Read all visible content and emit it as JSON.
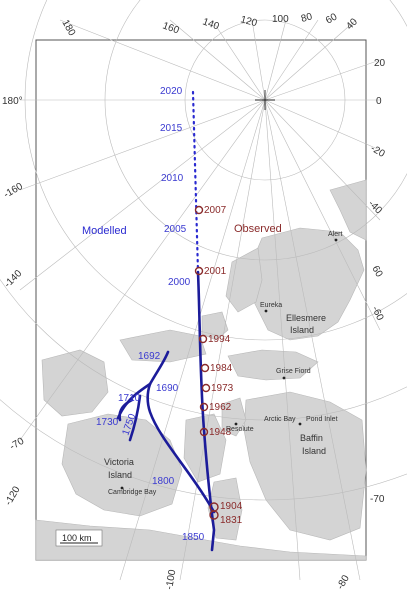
{
  "edge_labels": {
    "top": [
      "180",
      "160",
      "140",
      "120",
      "100",
      "80",
      "60",
      "40"
    ],
    "left": [
      "180°",
      "-160",
      "-140",
      "-70",
      "-120"
    ],
    "right": [
      "20",
      "0",
      "-20",
      "-40",
      "60",
      "-60",
      "-70",
      "-80"
    ],
    "bottom": [
      "-100",
      "-80"
    ]
  },
  "legend": {
    "modelled": "Modelled",
    "observed": "Observed"
  },
  "modelled_years": [
    "2020",
    "2015",
    "2010",
    "2005",
    "2000",
    "1692",
    "1710",
    "1690",
    "1730",
    "1750",
    "1800",
    "1850"
  ],
  "observed_years": [
    "2007",
    "2001",
    "1994",
    "1984",
    "1973",
    "1962",
    "1948",
    "1904",
    "1831"
  ],
  "places": [
    "Alert",
    "Eureka",
    "Grise Fiord",
    "Resolute",
    "Arctic Bay",
    "Pond Inlet",
    "Cambridge Bay"
  ],
  "islands": {
    "ellesmere_1": "Ellesmere",
    "ellesmere_2": "Island",
    "victoria_1": "Victoria",
    "victoria_2": "Island",
    "baffin_1": "Baffin",
    "baffin_2": "Island"
  },
  "scale": "100 km",
  "colors": {
    "modelled": "#2a2ad0",
    "path": "#1c1c9a",
    "observed": "#8a2b2b",
    "land": "#d4d4d4",
    "grid": "#bbbbbb"
  }
}
